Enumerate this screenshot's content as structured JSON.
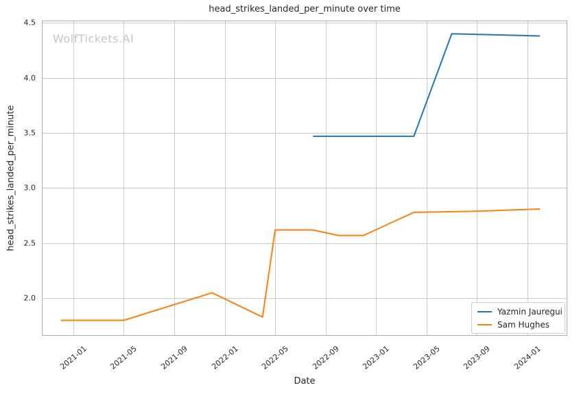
{
  "watermark": "WolfTickets.AI",
  "chart_data": {
    "type": "line",
    "title": "head_strikes_landed_per_minute over time",
    "xlabel": "Date",
    "ylabel": "head_strikes_landed_per_minute",
    "grid": true,
    "legend_position": "lower right",
    "xlim": [
      "2020-10-16",
      "2024-04-06"
    ],
    "ylim": [
      1.66,
      4.52
    ],
    "x_ticks": [
      {
        "label": "2021-01"
      },
      {
        "label": "2021-05"
      },
      {
        "label": "2021-09"
      },
      {
        "label": "2022-01"
      },
      {
        "label": "2022-05"
      },
      {
        "label": "2022-09"
      },
      {
        "label": "2023-01"
      },
      {
        "label": "2023-05"
      },
      {
        "label": "2023-09"
      },
      {
        "label": "2024-01"
      }
    ],
    "y_ticks": [
      {
        "value": 2.0,
        "label": "2.0"
      },
      {
        "value": 2.5,
        "label": "2.5"
      },
      {
        "value": 3.0,
        "label": "3.0"
      },
      {
        "value": 3.5,
        "label": "3.5"
      },
      {
        "value": 4.0,
        "label": "4.0"
      },
      {
        "value": 4.5,
        "label": "4.5"
      }
    ],
    "series": [
      {
        "name": "Yazmin Jauregui",
        "color": "#1f77b4",
        "points": [
          [
            "2022-08",
            3.47
          ],
          [
            "2023-04",
            3.47
          ],
          [
            "2023-07",
            4.4
          ],
          [
            "2024-02",
            4.38
          ]
        ]
      },
      {
        "name": "Sam Hughes",
        "color": "#ff7f0e",
        "points": [
          [
            "2020-12",
            1.8
          ],
          [
            "2021-05",
            1.8
          ],
          [
            "2021-12",
            2.05
          ],
          [
            "2022-04",
            1.83
          ],
          [
            "2022-05",
            2.62
          ],
          [
            "2022-08",
            2.62
          ],
          [
            "2022-10",
            2.57
          ],
          [
            "2022-12",
            2.57
          ],
          [
            "2023-04",
            2.78
          ],
          [
            "2023-09",
            2.79
          ],
          [
            "2024-02",
            2.81
          ]
        ]
      }
    ],
    "style": {
      "grid_color": "#cbcbcb",
      "spine_color": "#adadad",
      "text_color": "#262626",
      "watermark_color": "#c5c5c5",
      "line_width": 2
    }
  }
}
